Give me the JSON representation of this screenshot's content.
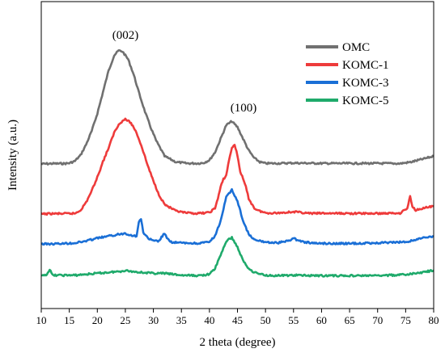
{
  "chart_data": {
    "type": "line",
    "xlabel": "2 theta (degree)",
    "ylabel": "Intensity (a.u.)",
    "xlim": [
      10,
      80
    ],
    "x_ticks": [
      10,
      15,
      20,
      25,
      30,
      35,
      40,
      45,
      50,
      55,
      60,
      65,
      70,
      75,
      80
    ],
    "y_ticks_shown": false,
    "grid": false,
    "legend_position": "top-right",
    "annotations": [
      {
        "text": "(002)",
        "x": 24
      },
      {
        "text": "(100)",
        "x": 43.5
      }
    ],
    "y_units": "relative intensity, curves vertically offset (no numeric scale printed)",
    "series": [
      {
        "name": "OMC",
        "color": "#707070",
        "x": [
          10,
          12,
          14,
          15,
          16,
          17,
          18,
          19,
          20,
          21,
          22,
          23,
          23.8,
          24.5,
          25.5,
          26.5,
          27.5,
          28.5,
          29.5,
          30.5,
          32,
          34,
          36,
          38,
          39,
          40,
          41,
          42,
          43,
          44,
          45,
          46,
          47,
          48,
          49,
          50,
          52,
          55,
          60,
          65,
          70,
          74,
          76,
          78,
          80
        ],
        "y": [
          0,
          0.2,
          0.2,
          0.4,
          1.5,
          4.5,
          10,
          17,
          26,
          37,
          48,
          56,
          58.5,
          58,
          54,
          46,
          36,
          27,
          19,
          12,
          4,
          1,
          0.3,
          0.3,
          0.6,
          2,
          6,
          13,
          20,
          22,
          19,
          13,
          7,
          3,
          1,
          0.3,
          0.3,
          0.5,
          0.3,
          0.3,
          0.3,
          0.2,
          1,
          2.5,
          4
        ]
      },
      {
        "name": "KOMC-1",
        "color": "#ee3b3b",
        "x": [
          10,
          12,
          14,
          16,
          17,
          18,
          19,
          20,
          21,
          22,
          23,
          24,
          25,
          26,
          27,
          28,
          29,
          30,
          31,
          32,
          34,
          36,
          38,
          40,
          41,
          41.5,
          42,
          42.5,
          43,
          43.5,
          44,
          44.5,
          45,
          45.5,
          46,
          46.5,
          47,
          48,
          49,
          50,
          52,
          55,
          58,
          60,
          65,
          70,
          74,
          75.3,
          75.8,
          76.2,
          76.8,
          78,
          80
        ],
        "y": [
          0,
          0.2,
          0.2,
          0.3,
          2,
          6,
          12,
          19,
          27,
          34,
          42,
          47,
          49,
          47,
          42,
          34,
          25,
          17,
          10,
          5,
          1.5,
          0.5,
          0.3,
          0.8,
          3,
          8,
          14,
          18,
          20,
          28,
          34,
          36,
          30,
          22,
          18,
          14,
          8,
          3,
          1.5,
          0.6,
          0.5,
          1.2,
          0.3,
          0.4,
          0.3,
          0.3,
          0.5,
          3,
          9,
          4,
          2,
          3,
          4
        ]
      },
      {
        "name": "KOMC-3",
        "color": "#1a6fd6",
        "x": [
          10,
          12,
          14,
          16,
          18,
          20,
          22,
          24,
          25,
          26,
          27,
          27.4,
          27.8,
          28.2,
          29,
          30,
          31,
          31.6,
          32,
          32.4,
          33,
          35,
          38,
          40,
          41,
          42,
          43,
          44,
          45,
          46,
          47,
          48,
          50,
          52,
          54,
          55,
          56,
          58,
          60,
          65,
          70,
          75,
          78,
          80
        ],
        "y": [
          0,
          0,
          0.2,
          0.5,
          1.5,
          3,
          4,
          5,
          5.5,
          4.5,
          4,
          11,
          13,
          6,
          3,
          1.5,
          1.5,
          4,
          5.5,
          3,
          1,
          0.5,
          0.3,
          1,
          4,
          12,
          24,
          28,
          22,
          12,
          5,
          2,
          1,
          0.5,
          1.5,
          3,
          1.5,
          0.5,
          0.3,
          0.2,
          0.5,
          1,
          3,
          4
        ]
      },
      {
        "name": "KOMC-5",
        "color": "#1faa6b",
        "x": [
          10,
          11,
          11.5,
          12,
          14,
          16,
          18,
          20,
          22,
          24,
          25,
          26,
          28,
          30,
          32,
          35,
          38,
          40,
          41,
          42,
          43,
          44,
          45,
          46,
          47,
          48,
          50,
          52,
          55,
          60,
          65,
          70,
          75,
          78,
          80
        ],
        "y": [
          0,
          1,
          3.5,
          0.5,
          0.5,
          0.5,
          1,
          1.5,
          2,
          2.5,
          3,
          2.5,
          2,
          1.5,
          1.5,
          0.5,
          0.3,
          1,
          4,
          11,
          18,
          20,
          15,
          8,
          4,
          2,
          0.5,
          0.3,
          0.5,
          0.3,
          0.3,
          0.3,
          0.8,
          2,
          3
        ]
      }
    ]
  }
}
